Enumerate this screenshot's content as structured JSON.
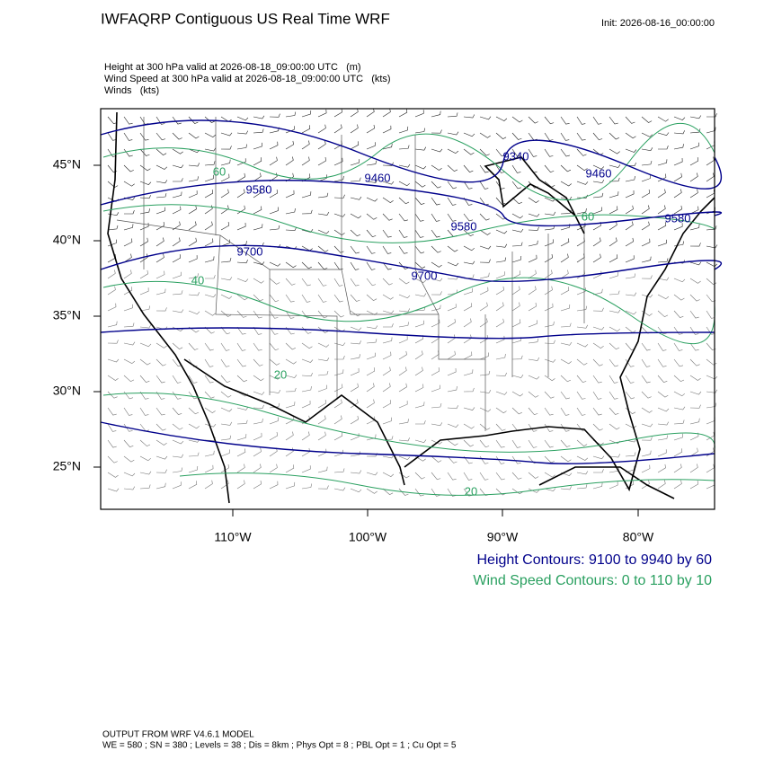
{
  "header": {
    "title": "IWFAQRP Contiguous US Real Time WRF",
    "init": "Init: 2026-08-16_00:00:00"
  },
  "fields": [
    "Height at 300 hPa valid at 2026-08-18_09:00:00 UTC   (m)",
    "Wind Speed at 300 hPa valid at 2026-08-18_09:00:00 UTC   (kts)",
    "Winds   (kts)"
  ],
  "map": {
    "lat_labels": [
      "45°N",
      "40°N",
      "35°N",
      "30°N",
      "25°N"
    ],
    "lon_labels": [
      "110°W",
      "100°W",
      "90°W",
      "80°W"
    ],
    "height_contour_labels": [
      "9580",
      "9460",
      "9700",
      "9340",
      "9460",
      "9580",
      "9580",
      "9700"
    ],
    "wind_contour_labels": [
      "60",
      "40",
      "20",
      "20",
      "60"
    ]
  },
  "legend": {
    "height": "Height Contours: 9100 to 9940 by 60",
    "wind": "Wind Speed Contours: 0 to 110 by 10"
  },
  "footer": {
    "model": "OUTPUT FROM WRF V4.6.1 MODEL",
    "settings": "WE = 580 ; SN = 380 ; Levels = 38 ; Dis = 8km ; Phys Opt = 8 ; PBL Opt = 1 ; Cu Opt = 5"
  }
}
